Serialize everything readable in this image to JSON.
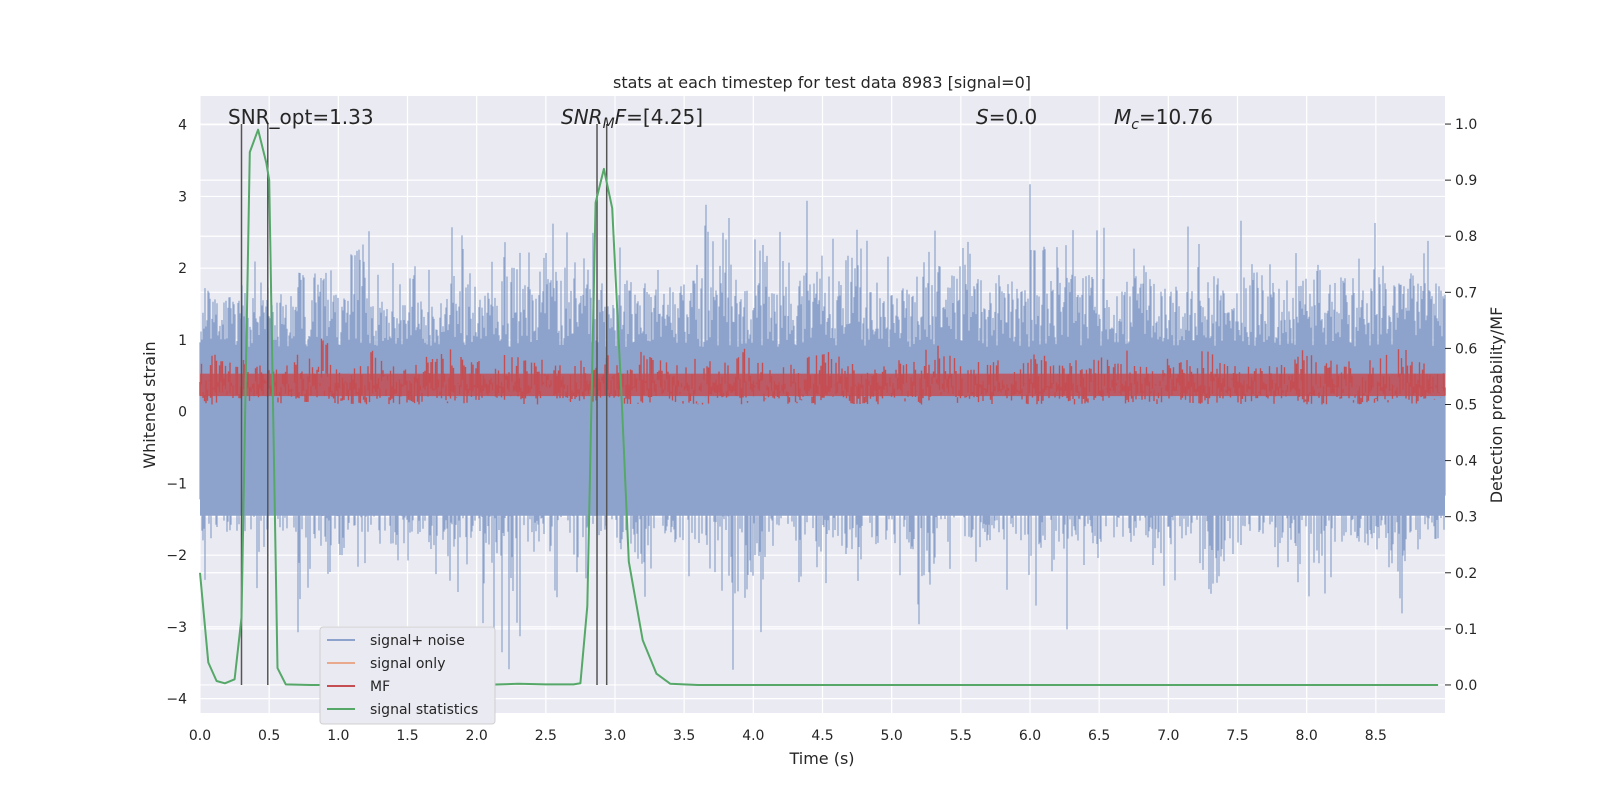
{
  "chart_data": {
    "type": "line",
    "title": "stats at each timestep for test data 8983 [signal=0]",
    "xlabel": "Time (s)",
    "ylabel_left": "Whitened strain",
    "ylabel_right": "Detection probability/MF",
    "xlim": [
      0.0,
      9.0
    ],
    "ylim_left": [
      -4.2,
      4.4
    ],
    "ylim_right": [
      -0.05,
      1.05
    ],
    "x_ticks": [
      0.0,
      0.5,
      1.0,
      1.5,
      2.0,
      2.5,
      3.0,
      3.5,
      4.0,
      4.5,
      5.0,
      5.5,
      6.0,
      6.5,
      7.0,
      7.5,
      8.0,
      8.5
    ],
    "x_tick_labels": [
      "0.0",
      "0.5",
      "1.0",
      "1.5",
      "2.0",
      "2.5",
      "3.0",
      "3.5",
      "4.0",
      "4.5",
      "5.0",
      "5.5",
      "6.0",
      "6.5",
      "7.0",
      "7.5",
      "8.0",
      "8.5"
    ],
    "y_left_ticks": [
      4,
      3,
      2,
      1,
      0,
      -1,
      -2,
      -3,
      -4
    ],
    "y_left_tick_labels": [
      "4",
      "3",
      "2",
      "1",
      "0",
      "−1",
      "−2",
      "−3",
      "−4"
    ],
    "y_right_ticks": [
      1.0,
      0.9,
      0.8,
      0.7,
      0.6,
      0.5,
      0.4,
      0.3,
      0.2,
      0.1,
      0.0
    ],
    "y_right_tick_labels": [
      "1.0",
      "0.9",
      "0.8",
      "0.7",
      "0.6",
      "0.5",
      "0.4",
      "0.3",
      "0.2",
      "0.1",
      "0.0"
    ],
    "grid": true,
    "annotations": {
      "snr_opt": "SNR_opt=1.33",
      "snr_mf_italic": "SNR",
      "snr_mf_sub": "M",
      "snr_mf_italic2": "F",
      "snr_mf_rest": "=[4.25]",
      "s_italic": "S",
      "s_rest": "=0.0",
      "mc_italic": "M",
      "mc_sub": "c",
      "mc_rest": "=10.76"
    },
    "legend_position": "lower-left",
    "legend": [
      "signal+ noise",
      "signal only",
      "MF",
      "signal statistics"
    ],
    "colors": {
      "signal_noise": "#8ea3cc",
      "signal_only": "#e8a98c",
      "mf": "#c44e52",
      "signal_statistics": "#55a868",
      "vlines": "#555555",
      "background": "#eaeaf2"
    },
    "series": [
      {
        "name": "signal+ noise",
        "axis": "left",
        "envelope": {
          "upper": [
            2.4,
            2.1,
            2.5,
            2.0,
            2.2,
            2.0,
            2.7,
            2.2,
            3.3,
            2.0,
            2.1,
            2.5,
            2.2,
            2.6,
            2.4,
            2.3,
            3.2,
            2.6,
            2.8,
            2.5,
            3.1,
            2.4,
            2.6,
            2.2,
            2.2,
            2.4,
            3.1,
            2.5,
            2.9,
            2.5,
            2.6,
            2.3,
            3.1,
            2.6,
            3.2,
            2.4,
            2.5,
            2.3,
            2.6,
            2.8,
            3.4,
            2.5,
            2.6,
            2.4,
            3.3,
            2.5,
            2.6,
            2.6,
            2.2,
            2.6,
            2.2,
            2.3,
            2.6,
            2.6,
            2.5,
            2.7,
            2.9,
            2.4,
            2.5,
            2.9,
            2.7,
            2.5,
            3.0,
            2.4,
            2.8,
            2.4
          ],
          "lower": [
            -2.6,
            -2.2,
            -2.1,
            -2.7,
            -2.2,
            -3.5,
            -2.6,
            -2.8,
            -2.3,
            -2.2,
            -2.5,
            -2.3,
            -2.6,
            -2.6,
            -2.4,
            -3.2,
            -3.6,
            -2.5,
            -2.7,
            -2.8,
            -2.5,
            -2.3,
            -2.7,
            -3.1,
            -2.3,
            -2.4,
            -2.6,
            -2.5,
            -3.7,
            -3.3,
            -2.6,
            -2.4,
            -2.7,
            -2.4,
            -2.7,
            -2.5,
            -2.4,
            -2.6,
            -3.3,
            -2.2,
            -2.4,
            -2.6,
            -2.5,
            -2.4,
            -2.8,
            -3.4,
            -2.4,
            -2.5,
            -2.4,
            -2.5,
            -2.6,
            -3.0,
            -2.5,
            -3.6,
            -2.9,
            -2.3,
            -2.6,
            -2.4,
            -3.8,
            -3.3,
            -2.5,
            -2.6,
            -2.7,
            -3.5,
            -2.4,
            -2.4
          ]
        }
      },
      {
        "name": "MF",
        "axis": "right",
        "envelope": {
          "upper": [
            0.59,
            0.58,
            0.6,
            0.57,
            0.58,
            0.6,
            0.62,
            0.58,
            0.59,
            0.6,
            0.57,
            0.58,
            0.59,
            0.6,
            0.58,
            0.57,
            0.59,
            0.58,
            0.6,
            0.57,
            0.58,
            0.59,
            0.58,
            0.6,
            0.58,
            0.57,
            0.59,
            0.58,
            0.6,
            0.59,
            0.57,
            0.58,
            0.59,
            0.6,
            0.58,
            0.57,
            0.59,
            0.58,
            0.6,
            0.61,
            0.57,
            0.58,
            0.59,
            0.58,
            0.6,
            0.57,
            0.58,
            0.59,
            0.58,
            0.6,
            0.57,
            0.59,
            0.58,
            0.6,
            0.58,
            0.59,
            0.57,
            0.58,
            0.6,
            0.59,
            0.58,
            0.57,
            0.59,
            0.6,
            0.58,
            0.57
          ],
          "lower": [
            0.5,
            0.51,
            0.5,
            0.51,
            0.5,
            0.5,
            0.51,
            0.5,
            0.5,
            0.51,
            0.5,
            0.5,
            0.51,
            0.5,
            0.5,
            0.51,
            0.5,
            0.5,
            0.51,
            0.5,
            0.5,
            0.51,
            0.5,
            0.5,
            0.51,
            0.5,
            0.5,
            0.51,
            0.5,
            0.5,
            0.51,
            0.5,
            0.5,
            0.51,
            0.5,
            0.5,
            0.51,
            0.5,
            0.5,
            0.51,
            0.5,
            0.5,
            0.51,
            0.5,
            0.5,
            0.51,
            0.5,
            0.5,
            0.51,
            0.5,
            0.5,
            0.51,
            0.5,
            0.5,
            0.51,
            0.5,
            0.5,
            0.51,
            0.5,
            0.5,
            0.51,
            0.5,
            0.5,
            0.51,
            0.5,
            0.5
          ]
        }
      },
      {
        "name": "signal statistics",
        "axis": "right",
        "x": [
          0.0,
          0.06,
          0.12,
          0.18,
          0.25,
          0.3,
          0.36,
          0.42,
          0.48,
          0.5,
          0.56,
          0.62,
          0.8,
          1.0,
          1.5,
          2.0,
          2.3,
          2.5,
          2.7,
          2.75,
          2.8,
          2.86,
          2.92,
          2.98,
          3.05,
          3.1,
          3.2,
          3.3,
          3.4,
          3.6,
          4.0,
          5.0,
          6.0,
          7.0,
          8.0,
          8.95
        ],
        "y": [
          0.2,
          0.04,
          0.007,
          0.003,
          0.01,
          0.12,
          0.95,
          0.99,
          0.93,
          0.9,
          0.03,
          0.001,
          0.0,
          0.0,
          0.0,
          0.0,
          0.002,
          0.001,
          0.001,
          0.003,
          0.14,
          0.86,
          0.92,
          0.85,
          0.5,
          0.22,
          0.08,
          0.02,
          0.002,
          0.0,
          0.0,
          0.0,
          0.0,
          0.0,
          0.0,
          0.0
        ]
      }
    ],
    "vertical_lines": [
      0.3,
      0.49,
      2.87,
      2.94
    ],
    "vertical_line_range_right": [
      0.0,
      1.0
    ]
  }
}
